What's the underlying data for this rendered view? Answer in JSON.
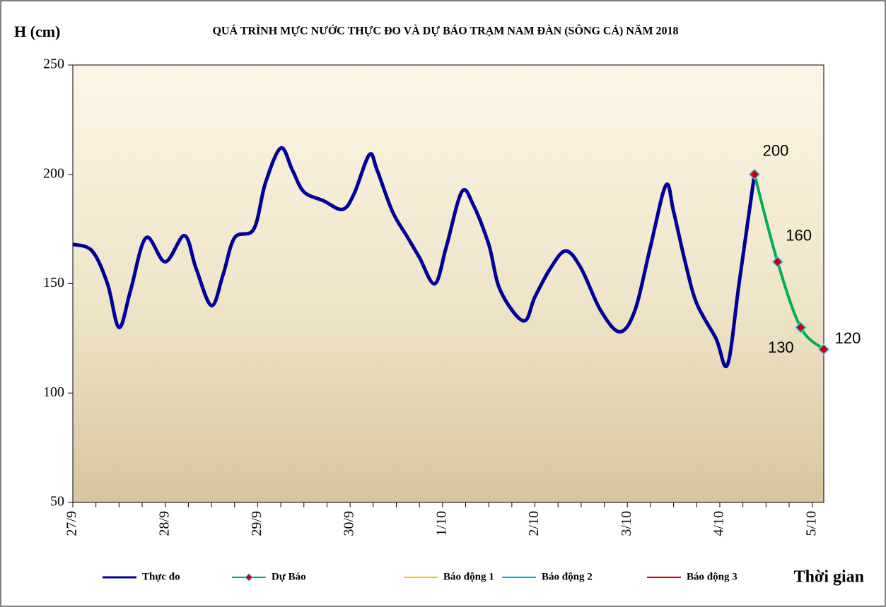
{
  "chart_data": {
    "type": "line",
    "title": "QUÁ TRÌNH MỰC NƯỚC THỰC ĐO VÀ DỰ BÁO TRẠM NAM ĐÀN (SÔNG CẢ) NĂM 2018",
    "y_label": "H (cm)",
    "x_label": "Thời gian",
    "xlim": [
      0,
      195
    ],
    "xticks": [
      {
        "value": 0,
        "label": "27/9"
      },
      {
        "value": 24,
        "label": "28/9"
      },
      {
        "value": 48,
        "label": "29/9"
      },
      {
        "value": 72,
        "label": "30/9"
      },
      {
        "value": 96,
        "label": "1/10"
      },
      {
        "value": 120,
        "label": "2/10"
      },
      {
        "value": 144,
        "label": "3/10"
      },
      {
        "value": 168,
        "label": "4/10"
      },
      {
        "value": 192,
        "label": "5/10"
      }
    ],
    "xminorticks": [
      6,
      12,
      18,
      30,
      36,
      42,
      54,
      60,
      66,
      78,
      84,
      90,
      102,
      108,
      114,
      126,
      132,
      138,
      150,
      156,
      162,
      174,
      180,
      186
    ],
    "ylim": [
      50,
      250
    ],
    "yticks": [
      50,
      100,
      150,
      200,
      250
    ],
    "grid": false,
    "series": [
      {
        "name": "Thực đo",
        "color": "#000099",
        "x": [
          0,
          5,
          9,
          12,
          15,
          19,
          24,
          29,
          32,
          36,
          39,
          42,
          47,
          50,
          54,
          57,
          60,
          65,
          70,
          73,
          77,
          79,
          83,
          87,
          90,
          94,
          97,
          101,
          104,
          108,
          111,
          117,
          120,
          124,
          128,
          132,
          137,
          142,
          146,
          150,
          154,
          156,
          159,
          162,
          167,
          170,
          173,
          177
        ],
        "values": [
          168,
          165,
          150,
          130,
          147,
          171,
          160,
          172,
          157,
          140,
          154,
          171,
          175,
          196,
          212,
          202,
          192,
          188,
          184,
          191,
          209,
          202,
          183,
          171,
          162,
          150,
          167,
          192,
          186,
          168,
          147,
          133,
          144,
          157,
          165,
          157,
          138,
          128,
          138,
          167,
          195,
          183,
          160,
          141,
          125,
          113,
          150,
          200
        ]
      },
      {
        "name": "Dự Báo",
        "color": "#00b050",
        "marker_color": "#cc0000",
        "marker_edge": "#33ccff",
        "x": [
          177,
          183,
          189,
          195
        ],
        "values": [
          200,
          160,
          130,
          120
        ]
      },
      {
        "name": "Báo động 1",
        "color": "#ffc000",
        "x": [],
        "values": []
      },
      {
        "name": "Báo động 2",
        "color": "#00b0f0",
        "x": [],
        "values": []
      },
      {
        "name": "Báo động 3",
        "color": "#e00000",
        "x": [],
        "values": []
      }
    ]
  }
}
